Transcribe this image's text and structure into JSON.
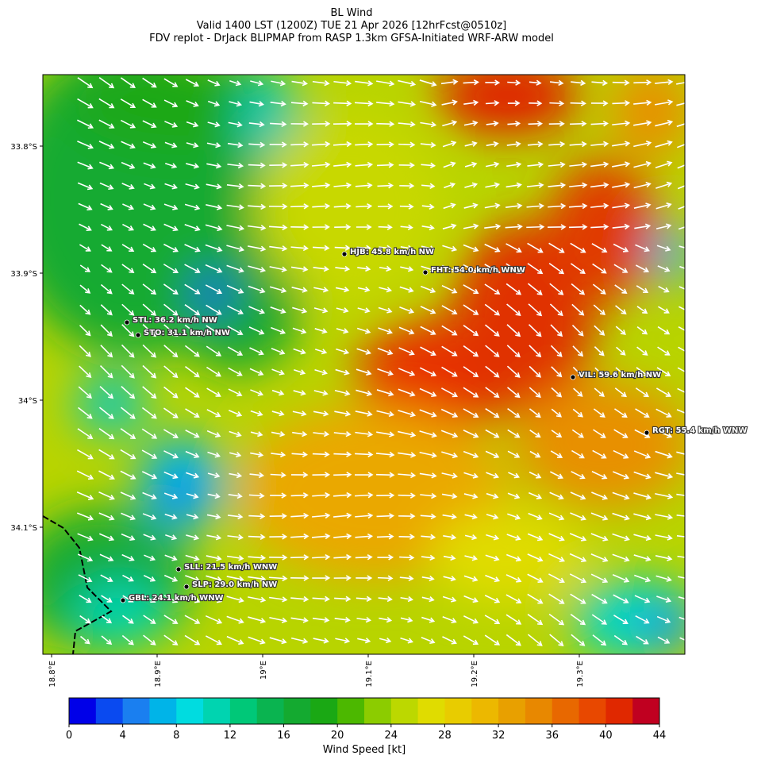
{
  "header": {
    "title": "BL Wind",
    "subtitle": "Valid 1400 LST (1200Z) TUE 21 Apr 2026 [12hrFcst@0510z]",
    "source": "FDV replot - DrJack BLIPMAP from RASP 1.3km GFSA-Initiated WRF-ARW model"
  },
  "map": {
    "lat_ticks": [
      {
        "value": 33.8,
        "label": "33.8°S"
      },
      {
        "value": 33.9,
        "label": "33.9°S"
      },
      {
        "value": 34.0,
        "label": "34°S"
      },
      {
        "value": 34.1,
        "label": "34.1°S"
      }
    ],
    "lon_ticks": [
      {
        "value": 18.8,
        "label": "18.8°E"
      },
      {
        "value": 18.9,
        "label": "18.9°E"
      },
      {
        "value": 19.0,
        "label": "19°E"
      },
      {
        "value": 19.1,
        "label": "19.1°E"
      },
      {
        "value": 19.2,
        "label": "19.2°E"
      },
      {
        "value": 19.3,
        "label": "19.3°E"
      }
    ],
    "stations": [
      {
        "label": "HJB: 45.8 km/h NW"
      },
      {
        "label": "FHT: 54.0 km/h WNW"
      },
      {
        "label": "STL: 36.2 km/h NW"
      },
      {
        "label": "STO: 31.1 km/h NW"
      },
      {
        "label": "VIL: 59.6 km/h NW"
      },
      {
        "label": "RGT: 55.4 km/h WNW"
      },
      {
        "label": "SLL: 21.5 km/h WNW"
      },
      {
        "label": "SLP: 29.0 km/h NW"
      },
      {
        "label": "GBL: 24.1 km/h WNW"
      }
    ]
  },
  "colorbar": {
    "label": "Wind Speed [kt]",
    "lim": [
      0,
      44
    ],
    "ticks": [
      0,
      4,
      8,
      12,
      16,
      20,
      24,
      28,
      32,
      36,
      40,
      44
    ],
    "colors": [
      "#0000e8",
      "#0a4af0",
      "#1a7ff0",
      "#00b4e8",
      "#00dce0",
      "#00d4b0",
      "#00c878",
      "#0ab450",
      "#14aa30",
      "#1aa814",
      "#4cb800",
      "#8ccc00",
      "#bcd800",
      "#e0dc00",
      "#e8cc00",
      "#ecb800",
      "#e8a000",
      "#e88800",
      "#e86800",
      "#e84800",
      "#e02800",
      "#c00020"
    ]
  }
}
